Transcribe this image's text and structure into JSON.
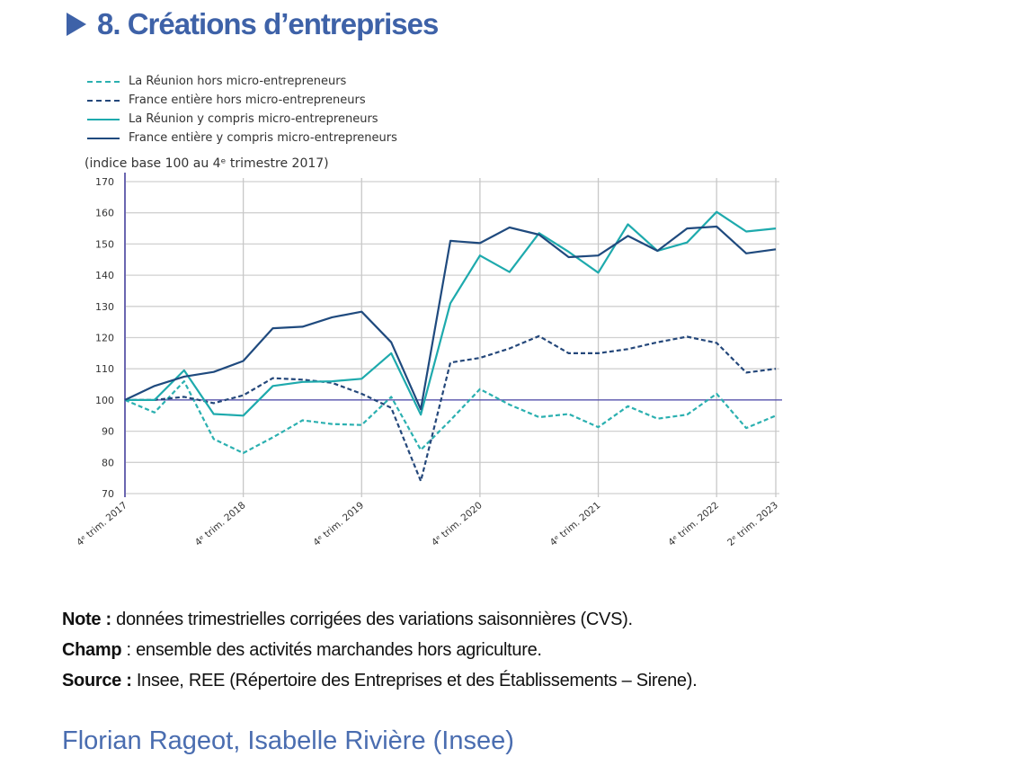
{
  "title": "8. Créations d’entreprises",
  "chart_data": {
    "type": "line",
    "title": "8. Créations d’entreprises",
    "ylabel": "(indice base 100 au 4ᵉ trimestre 2017)",
    "ylim": [
      70,
      170
    ],
    "yticks": [
      70,
      80,
      90,
      100,
      110,
      120,
      130,
      140,
      150,
      160,
      170
    ],
    "x_count": 23,
    "xtick_labels": [
      {
        "index": 0,
        "label": "4ᵉ trim. 2017"
      },
      {
        "index": 4,
        "label": "4ᵉ trim. 2018"
      },
      {
        "index": 8,
        "label": "4ᵉ trim. 2019"
      },
      {
        "index": 12,
        "label": "4ᵉ trim. 2020"
      },
      {
        "index": 16,
        "label": "4ᵉ trim. 2021"
      },
      {
        "index": 20,
        "label": "4ᵉ trim. 2022"
      },
      {
        "index": 22,
        "label": "2ᵉ trim. 2023"
      }
    ],
    "reference_line": 100,
    "grid": true,
    "legend_position": "top-left",
    "series": [
      {
        "name": "La Réunion hors micro-entrepreneurs",
        "color": "#2bb0b0",
        "dashed": true,
        "values": [
          100,
          96,
          106,
          87.5,
          83,
          88,
          93.5,
          92.3,
          92,
          101,
          84,
          93.5,
          103.5,
          98.5,
          94.5,
          95.5,
          91.3,
          98,
          94,
          95.3,
          102,
          91,
          95
        ]
      },
      {
        "name": "France entière hors micro-entrepreneurs",
        "color": "#24477a",
        "dashed": true,
        "values": [
          100,
          100,
          101,
          99,
          101.5,
          107,
          106.5,
          105.5,
          102,
          97.5,
          74,
          112,
          113.5,
          116.5,
          120.5,
          115,
          115,
          116.3,
          118.5,
          120.3,
          118.3,
          108.8,
          110
        ]
      },
      {
        "name": "La Réunion y compris micro-entrepreneurs",
        "color": "#1eaaad",
        "dashed": false,
        "values": [
          100,
          100,
          109.5,
          95.5,
          95,
          104.5,
          105.8,
          106,
          106.8,
          115,
          95.3,
          131,
          146.3,
          141,
          153.5,
          147.5,
          140.8,
          156.3,
          147.8,
          150.5,
          160.3,
          154,
          155
        ]
      },
      {
        "name": "France entière y compris micro-entrepreneurs",
        "color": "#1f4a7e",
        "dashed": false,
        "values": [
          100,
          104.5,
          107.5,
          109,
          112.5,
          123,
          123.5,
          126.5,
          128.3,
          118.5,
          97,
          151,
          150.3,
          155.3,
          153,
          145.8,
          146.3,
          152.6,
          147.8,
          155,
          155.6,
          147,
          148.3
        ]
      }
    ]
  },
  "notes": {
    "note_label": "Note :",
    "note_text": " données trimestrielles corrigées des variations saisonnières (CVS).",
    "champ_label": "Champ",
    "champ_text": " : ensemble des activités marchandes hors agriculture.",
    "source_label": "Source :",
    "source_text": " Insee, REE (Répertoire des Entreprises et des Établissements – Sirene)."
  },
  "author": "Florian Rageot, Isabelle Rivière (Insee)"
}
